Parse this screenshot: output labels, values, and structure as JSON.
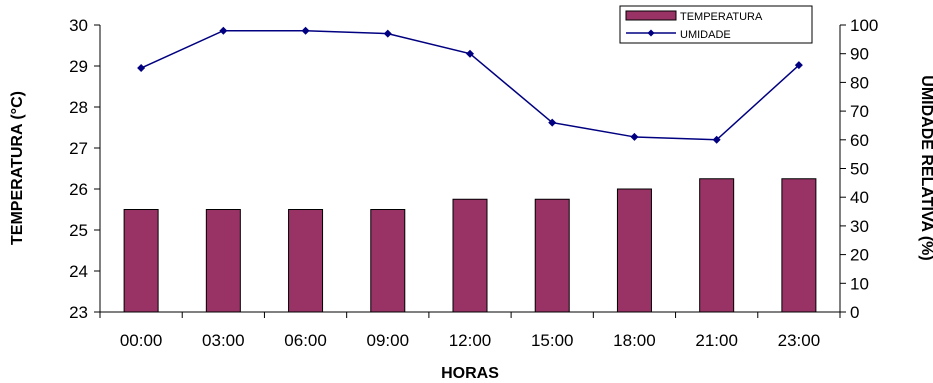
{
  "chart_data": {
    "type": "bar",
    "categories": [
      "00:00",
      "03:00",
      "06:00",
      "09:00",
      "12:00",
      "15:00",
      "18:00",
      "21:00",
      "23:00"
    ],
    "series": [
      {
        "name": "TEMPERATURA",
        "type": "bar",
        "axis": "left",
        "values": [
          25.5,
          25.5,
          25.5,
          25.5,
          25.75,
          25.75,
          26.0,
          26.25,
          26.25
        ]
      },
      {
        "name": "UMIDADE",
        "type": "line",
        "axis": "right",
        "values": [
          85,
          98,
          98,
          97,
          90,
          66,
          61,
          60,
          86
        ]
      }
    ],
    "xlabel": "HORAS",
    "ylabel": "TEMPERATURA (°C)",
    "y2label": "UMIDADE RELATIVA (%)",
    "ylim": [
      23,
      30
    ],
    "y2lim": [
      0,
      100
    ],
    "yticks": [
      "23",
      "24",
      "25",
      "26",
      "27",
      "28",
      "29",
      "30"
    ],
    "y2ticks": [
      "0",
      "10",
      "20",
      "30",
      "40",
      "50",
      "60",
      "70",
      "80",
      "90",
      "100"
    ],
    "legend_position": "top-right",
    "grid": false,
    "colors": {
      "bar": "#993366",
      "line": "#000080",
      "axis": "#000000"
    }
  }
}
